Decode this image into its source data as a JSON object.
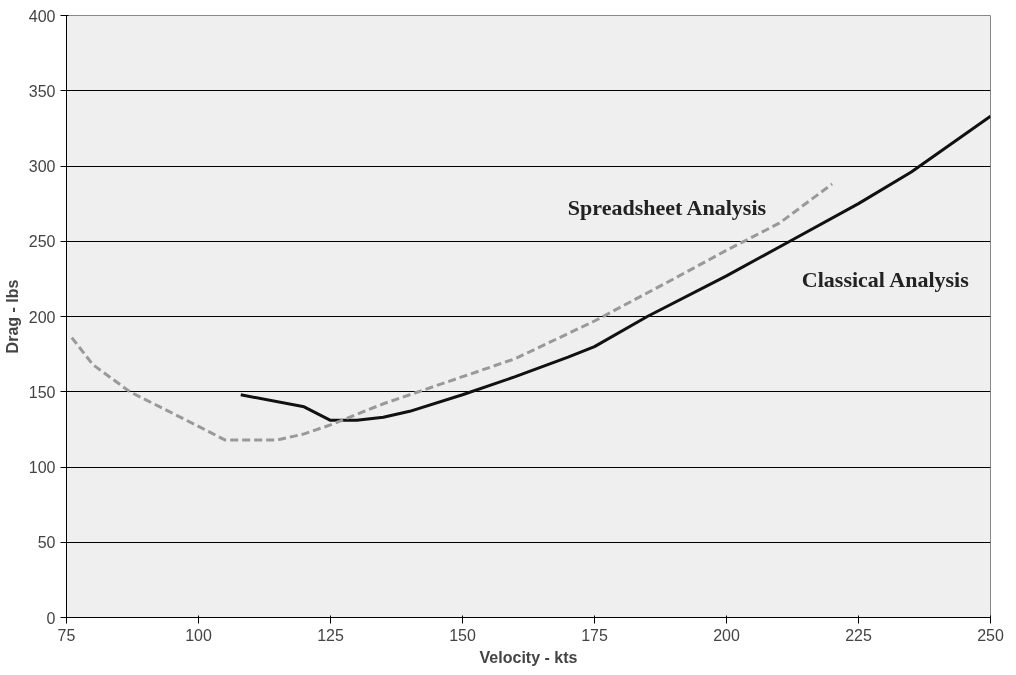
{
  "chart_data": {
    "type": "line",
    "xlabel": "Velocity - kts",
    "ylabel": "Drag - lbs",
    "xlim": [
      75,
      250
    ],
    "xticks": [
      75,
      100,
      125,
      150,
      175,
      200,
      225,
      250
    ],
    "ylim": [
      0,
      400
    ],
    "yticks": [
      0,
      50,
      100,
      150,
      200,
      250,
      300,
      350,
      400
    ],
    "grid": "y",
    "series": [
      {
        "name": "Classical Analysis",
        "color": "#111111",
        "line_style": "solid",
        "x": [
          108,
          120,
          125,
          130,
          135,
          140,
          150,
          160,
          170,
          175,
          185,
          200,
          212,
          225,
          235,
          250
        ],
        "values": [
          148,
          140,
          131,
          131,
          133,
          137,
          148,
          160,
          173,
          180,
          200,
          227,
          250,
          275,
          296,
          333
        ]
      },
      {
        "name": "Spreadsheet Analysis",
        "color": "#999999",
        "line_style": "dashed",
        "x": [
          76,
          80,
          87,
          100,
          105,
          115,
          120,
          125,
          135,
          150,
          160,
          175,
          190,
          200,
          210,
          220
        ],
        "values": [
          186,
          168,
          150,
          127,
          118,
          118,
          122,
          128,
          142,
          160,
          172,
          197,
          225,
          244,
          262,
          288
        ]
      }
    ]
  }
}
